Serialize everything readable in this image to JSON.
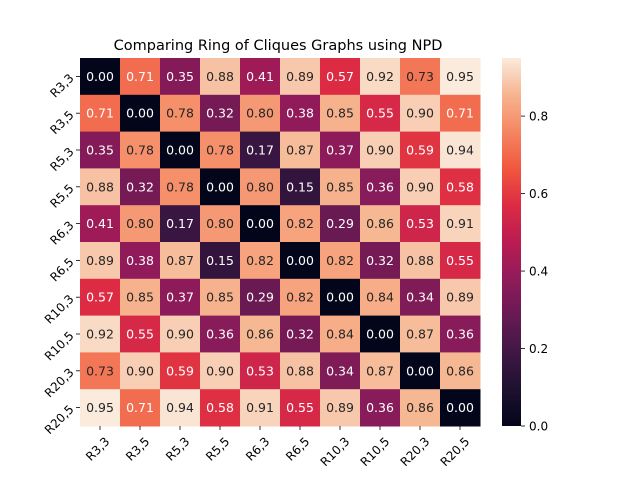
{
  "chart_data": {
    "type": "heatmap",
    "title": "Comparing Ring of Cliques Graphs using NPD",
    "xlabel": "",
    "ylabel": "",
    "x_categories": [
      "R3,3",
      "R3,5",
      "R5,3",
      "R5,5",
      "R6,3",
      "R6,5",
      "R10,3",
      "R10,5",
      "R20,3",
      "R20,5"
    ],
    "y_categories": [
      "R3,3",
      "R3,5",
      "R5,3",
      "R5,5",
      "R6,3",
      "R6,5",
      "R10,3",
      "R10,5",
      "R20,3",
      "R20,5"
    ],
    "values": [
      [
        0.0,
        0.71,
        0.35,
        0.88,
        0.41,
        0.89,
        0.57,
        0.92,
        0.73,
        0.95
      ],
      [
        0.71,
        0.0,
        0.78,
        0.32,
        0.8,
        0.38,
        0.85,
        0.55,
        0.9,
        0.71
      ],
      [
        0.35,
        0.78,
        0.0,
        0.78,
        0.17,
        0.87,
        0.37,
        0.9,
        0.59,
        0.94
      ],
      [
        0.88,
        0.32,
        0.78,
        0.0,
        0.8,
        0.15,
        0.85,
        0.36,
        0.9,
        0.58
      ],
      [
        0.41,
        0.8,
        0.17,
        0.8,
        0.0,
        0.82,
        0.29,
        0.86,
        0.53,
        0.91
      ],
      [
        0.89,
        0.38,
        0.87,
        0.15,
        0.82,
        0.0,
        0.82,
        0.32,
        0.88,
        0.55
      ],
      [
        0.57,
        0.85,
        0.37,
        0.85,
        0.29,
        0.82,
        0.0,
        0.84,
        0.34,
        0.89
      ],
      [
        0.92,
        0.55,
        0.9,
        0.36,
        0.86,
        0.32,
        0.84,
        0.0,
        0.87,
        0.36
      ],
      [
        0.73,
        0.9,
        0.59,
        0.9,
        0.53,
        0.88,
        0.34,
        0.87,
        0.0,
        0.86
      ],
      [
        0.95,
        0.71,
        0.94,
        0.58,
        0.91,
        0.55,
        0.89,
        0.36,
        0.86,
        0.0
      ]
    ],
    "value_format": "0.00",
    "color_range": [
      0.0,
      0.95
    ],
    "colormap": "rocket",
    "colorbar_ticks": [
      "0.0",
      "0.2",
      "0.4",
      "0.6",
      "0.8"
    ],
    "colorbar_tick_values": [
      0.0,
      0.2,
      0.4,
      0.6,
      0.8
    ],
    "grid": false,
    "colorbar_position": "right"
  }
}
